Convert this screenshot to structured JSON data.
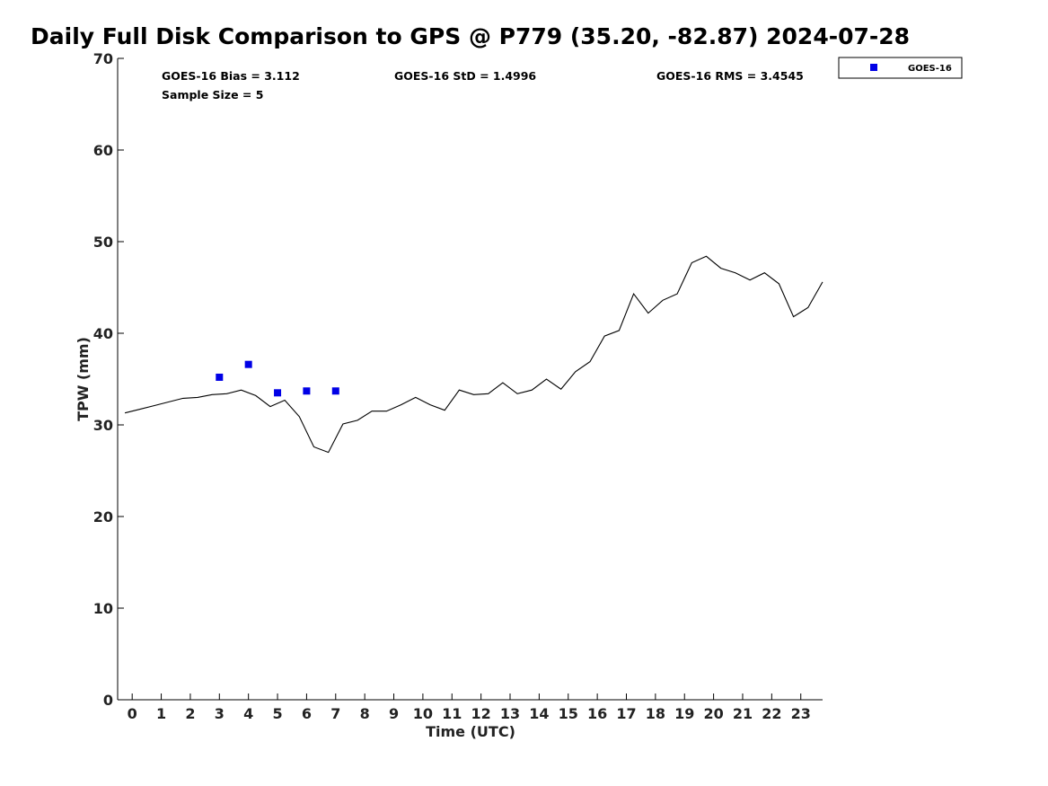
{
  "chart_data": {
    "type": "line",
    "title": "Daily Full Disk Comparison to GPS @ P779 (35.20, -82.87) 2024-07-28",
    "xlabel": "Time (UTC)",
    "ylabel": "TPW (mm)",
    "xlim": [
      -0.5,
      23.75
    ],
    "ylim": [
      0,
      70
    ],
    "x_ticks": [
      0,
      1,
      2,
      3,
      4,
      5,
      6,
      7,
      8,
      9,
      10,
      11,
      12,
      13,
      14,
      15,
      16,
      17,
      18,
      19,
      20,
      21,
      22,
      23
    ],
    "y_ticks": [
      0,
      10,
      20,
      30,
      40,
      50,
      60,
      70
    ],
    "grid": false,
    "legend_position": "top-right",
    "annotations": {
      "bias": "GOES-16 Bias = 3.112",
      "std": "GOES-16 StD = 1.4996",
      "rms": "GOES-16 RMS = 3.4545",
      "sample": "Sample Size = 5"
    },
    "series": [
      {
        "kind": "line",
        "color": "#000000",
        "x": [
          -0.25,
          0.25,
          0.75,
          1.25,
          1.75,
          2.25,
          2.75,
          3.25,
          3.75,
          4.25,
          4.75,
          5.25,
          5.75,
          6.25,
          6.75,
          7.25,
          7.75,
          8.25,
          8.75,
          9.25,
          9.75,
          10.25,
          10.75,
          11.25,
          11.75,
          12.25,
          12.75,
          13.25,
          13.75,
          14.25,
          14.75,
          15.25,
          15.75,
          16.25,
          16.75,
          17.25,
          17.75,
          18.25,
          18.75,
          19.25,
          19.75,
          20.25,
          20.75,
          21.25,
          21.75,
          22.25,
          22.75,
          23.25,
          23.75
        ],
        "y": [
          31.3,
          31.7,
          32.1,
          32.5,
          32.9,
          33.0,
          33.3,
          33.4,
          33.8,
          33.2,
          32.0,
          32.7,
          30.9,
          27.6,
          27.0,
          30.1,
          30.5,
          31.5,
          31.5,
          32.2,
          33.0,
          32.2,
          31.6,
          33.8,
          33.3,
          33.4,
          34.6,
          33.4,
          33.8,
          35.0,
          33.9,
          35.8,
          36.9,
          39.7,
          40.3,
          44.3,
          42.2,
          43.6,
          44.3,
          47.7,
          48.4,
          47.1,
          46.6,
          45.8,
          46.6,
          45.4,
          41.8,
          42.8,
          45.6
        ]
      },
      {
        "name": "GOES-16",
        "kind": "scatter",
        "color": "#0000e6",
        "x": [
          3,
          4,
          5,
          6,
          7
        ],
        "y": [
          35.2,
          36.6,
          33.5,
          33.7,
          33.7
        ]
      }
    ]
  }
}
